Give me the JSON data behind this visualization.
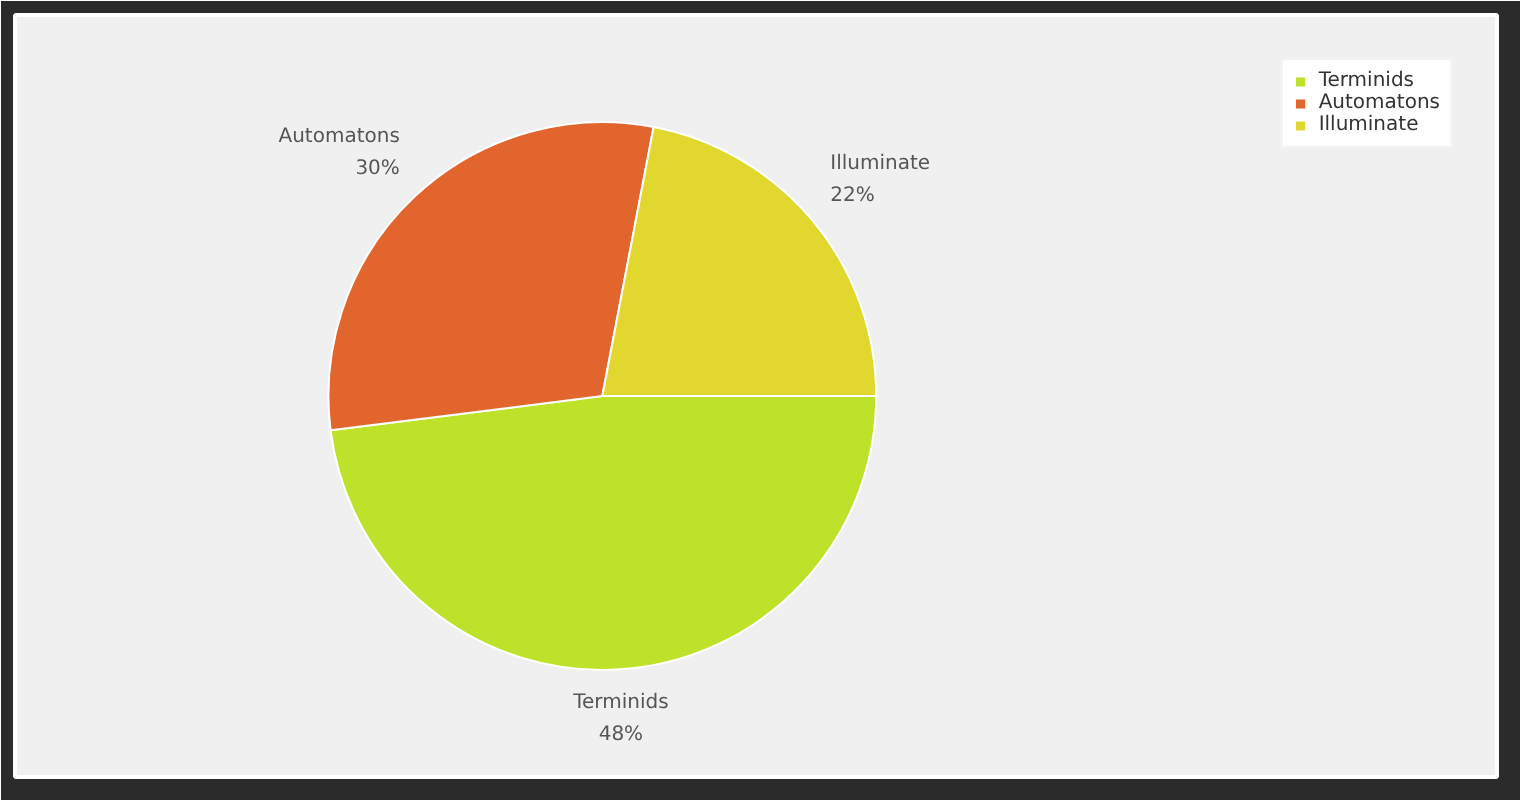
{
  "chart_data": {
    "type": "pie",
    "categories": [
      "Terminids",
      "Automatons",
      "Illuminate"
    ],
    "values": [
      48,
      30,
      22
    ],
    "value_labels": [
      "48%",
      "30%",
      "22%"
    ],
    "colors": [
      "#bee22a",
      "#e2652e",
      "#e1d72e"
    ],
    "legend": "top right"
  }
}
